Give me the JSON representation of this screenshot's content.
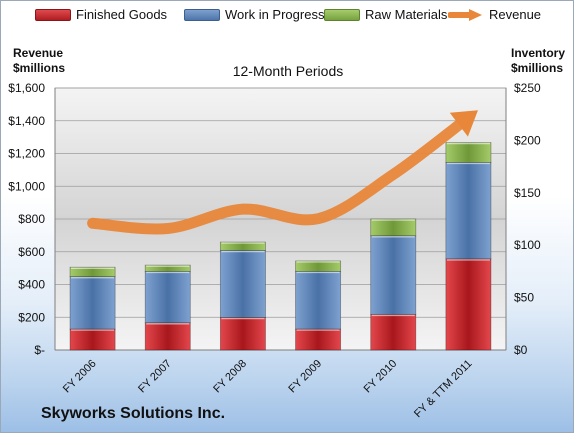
{
  "chart_data": {
    "type": "bar",
    "stacked": true,
    "subtitle": "12-Month Periods",
    "company": "Skyworks Solutions Inc.",
    "categories": [
      "FY 2006",
      "FY 2007",
      "FY 2008",
      "FY 2009",
      "FY 2010",
      "FY & TTM 2011"
    ],
    "series": [
      {
        "name": "Finished Goods",
        "axis": "right",
        "color": "#c0282d",
        "values": [
          20,
          26,
          31,
          20,
          34,
          87
        ]
      },
      {
        "name": "Work in Progress",
        "axis": "right",
        "color": "#5b84b8",
        "values": [
          50,
          49,
          64,
          55,
          75,
          92
        ]
      },
      {
        "name": "Raw Materials",
        "axis": "right",
        "color": "#8db654",
        "values": [
          9,
          6,
          8,
          10,
          16,
          19
        ]
      },
      {
        "name": "Revenue",
        "axis": "left",
        "type": "line",
        "color": "#e8873a",
        "values": [
          774,
          742,
          860,
          802,
          1072,
          1420
        ]
      }
    ],
    "y_left": {
      "label": "Revenue $millions",
      "min": 0,
      "max": 1600,
      "ticks": [
        "$-",
        "$200",
        "$400",
        "$600",
        "$800",
        "$1,000",
        "$1,200",
        "$1,400",
        "$1,600"
      ]
    },
    "y_right": {
      "label": "Inventory $millions",
      "min": 0,
      "max": 250,
      "ticks": [
        "$0",
        "$50",
        "$100",
        "$150",
        "$200",
        "$250"
      ]
    },
    "grid": true,
    "legend": "top"
  }
}
